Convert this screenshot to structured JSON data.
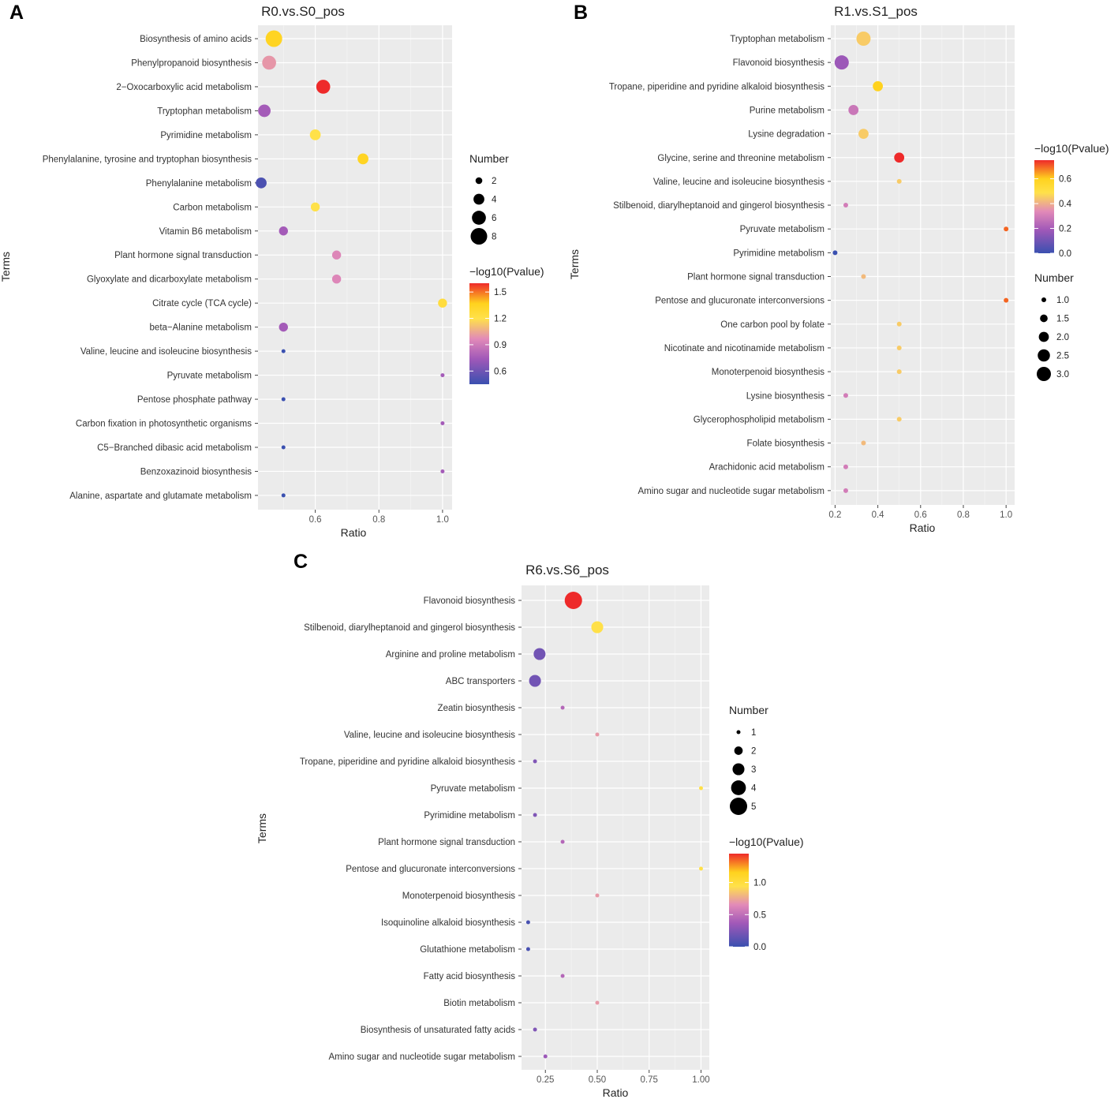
{
  "chart_data": [
    {
      "type": "scatter",
      "panel_label": "A",
      "title": "R0.vs.S0_pos",
      "xlabel": "Ratio",
      "ylabel": "Terms",
      "xlim": [
        0.42,
        1.03
      ],
      "xticks": [
        0.6,
        0.8,
        1.0
      ],
      "xtick_labels": [
        "0.6",
        "0.8",
        "1.0"
      ],
      "terms": [
        "Biosynthesis of amino acids",
        "Phenylpropanoid biosynthesis",
        "2−Oxocarboxylic acid metabolism",
        "Tryptophan metabolism",
        "Pyrimidine metabolism",
        "Phenylalanine, tyrosine and tryptophan biosynthesis",
        "Phenylalanine metabolism",
        "Carbon metabolism",
        "Vitamin B6 metabolism",
        "Plant hormone signal transduction",
        "Glyoxylate and dicarboxylate metabolism",
        "Citrate cycle (TCA cycle)",
        "beta−Alanine metabolism",
        "Valine, leucine and isoleucine biosynthesis",
        "Pyruvate metabolism",
        "Pentose phosphate pathway",
        "Carbon fixation in photosynthetic organisms",
        "C5−Branched dibasic acid metabolism",
        "Benzoxazinoid biosynthesis",
        "Alanine, aspartate and glutamate metabolism"
      ],
      "ratio": [
        0.47,
        0.455,
        0.625,
        0.44,
        0.6,
        0.75,
        0.43,
        0.6,
        0.5,
        0.667,
        0.667,
        1.0,
        0.5,
        0.5,
        1.0,
        0.5,
        1.0,
        0.5,
        1.0,
        0.5
      ],
      "number": [
        8,
        6,
        6,
        5,
        4,
        4,
        4,
        3,
        3,
        3,
        3,
        3,
        3,
        1,
        1,
        1,
        1,
        1,
        1,
        1
      ],
      "neglog10p": [
        1.35,
        1.0,
        1.6,
        0.75,
        1.2,
        1.35,
        0.5,
        1.2,
        0.75,
        0.95,
        0.95,
        1.25,
        0.75,
        0.45,
        0.75,
        0.45,
        0.75,
        0.45,
        0.75,
        0.45
      ],
      "size_legend": {
        "title": "Number",
        "values": [
          2,
          4,
          6,
          8
        ],
        "labels": [
          "2",
          "4",
          "6",
          "8"
        ],
        "min": 1,
        "max": 8
      },
      "color_legend": {
        "title": "−log10(Pvalue)",
        "min": 0.45,
        "max": 1.6,
        "ticks": [
          0.6,
          0.9,
          1.2,
          1.5
        ],
        "tick_labels": [
          "0.6",
          "0.9",
          "1.2",
          "1.5"
        ]
      },
      "legend_order": "size-first"
    },
    {
      "type": "scatter",
      "panel_label": "B",
      "title": "R1.vs.S1_pos",
      "xlabel": "Ratio",
      "ylabel": "Terms",
      "xlim": [
        0.18,
        1.04
      ],
      "xticks": [
        0.2,
        0.4,
        0.6,
        0.8,
        1.0
      ],
      "xtick_labels": [
        "0.2",
        "0.4",
        "0.6",
        "0.8",
        "1.0"
      ],
      "terms": [
        "Tryptophan metabolism",
        "Flavonoid biosynthesis",
        "Tropane, piperidine and pyridine alkaloid biosynthesis",
        "Purine metabolism",
        "Lysine degradation",
        "Glycine, serine and threonine metabolism",
        "Valine, leucine and isoleucine biosynthesis",
        "Stilbenoid, diarylheptanoid and gingerol biosynthesis",
        "Pyruvate metabolism",
        "Pyrimidine metabolism",
        "Plant hormone signal transduction",
        "Pentose and glucuronate interconversions",
        "One carbon pool by folate",
        "Nicotinate and nicotinamide metabolism",
        "Monoterpenoid biosynthesis",
        "Lysine biosynthesis",
        "Glycerophospholipid metabolism",
        "Folate biosynthesis",
        "Arachidonic acid metabolism",
        "Amino sugar and nucleotide sugar metabolism"
      ],
      "ratio": [
        0.333,
        0.231,
        0.4,
        0.286,
        0.333,
        0.5,
        0.5,
        0.25,
        1.0,
        0.2,
        0.333,
        1.0,
        0.5,
        0.5,
        0.5,
        0.25,
        0.5,
        0.333,
        0.25,
        0.25
      ],
      "number": [
        3,
        3,
        2,
        2,
        2,
        2,
        1,
        1,
        1,
        1,
        1,
        1,
        1,
        1,
        1,
        1,
        1,
        1,
        1,
        1
      ],
      "neglog10p": [
        0.45,
        0.18,
        0.6,
        0.28,
        0.45,
        0.75,
        0.45,
        0.3,
        0.7,
        0.0,
        0.42,
        0.7,
        0.45,
        0.45,
        0.45,
        0.3,
        0.45,
        0.42,
        0.3,
        0.3
      ],
      "size_legend": {
        "title": "Number",
        "values": [
          1.0,
          1.5,
          2.0,
          2.5,
          3.0
        ],
        "labels": [
          "1.0",
          "1.5",
          "2.0",
          "2.5",
          "3.0"
        ],
        "min": 1,
        "max": 3
      },
      "color_legend": {
        "title": "−log10(Pvalue)",
        "min": 0.0,
        "max": 0.75,
        "ticks": [
          0.0,
          0.2,
          0.4,
          0.6
        ],
        "tick_labels": [
          "0.0",
          "0.2",
          "0.4",
          "0.6"
        ]
      },
      "legend_order": "color-first"
    },
    {
      "type": "scatter",
      "panel_label": "C",
      "title": "R6.vs.S6_pos",
      "xlabel": "Ratio",
      "ylabel": "Terms",
      "xlim": [
        0.135,
        1.04
      ],
      "xticks": [
        0.25,
        0.5,
        0.75,
        1.0
      ],
      "xtick_labels": [
        "0.25",
        "0.50",
        "0.75",
        "1.00"
      ],
      "terms": [
        "Flavonoid biosynthesis",
        "Stilbenoid, diarylheptanoid and gingerol biosynthesis",
        "Arginine and proline metabolism",
        "ABC transporters",
        "Zeatin biosynthesis",
        "Valine, leucine and isoleucine biosynthesis",
        "Tropane, piperidine and pyridine alkaloid biosynthesis",
        "Pyruvate metabolism",
        "Pyrimidine metabolism",
        "Plant hormone signal transduction",
        "Pentose and glucuronate interconversions",
        "Monoterpenoid biosynthesis",
        "Isoquinoline alkaloid biosynthesis",
        "Glutathione metabolism",
        "Fatty acid biosynthesis",
        "Biotin metabolism",
        "Biosynthesis of unsaturated fatty acids",
        "Amino sugar and nucleotide sugar metabolism"
      ],
      "ratio": [
        0.385,
        0.5,
        0.222,
        0.2,
        0.333,
        0.5,
        0.2,
        1.0,
        0.2,
        0.333,
        1.0,
        0.5,
        0.167,
        0.167,
        0.333,
        0.5,
        0.2,
        0.25
      ],
      "number": [
        5,
        3,
        3,
        3,
        1,
        1,
        1,
        1,
        1,
        1,
        1,
        1,
        1,
        1,
        1,
        1,
        1,
        1
      ],
      "neglog10p": [
        1.45,
        0.95,
        0.2,
        0.2,
        0.45,
        0.7,
        0.25,
        0.95,
        0.25,
        0.45,
        0.95,
        0.7,
        0.05,
        0.05,
        0.45,
        0.7,
        0.25,
        0.35
      ],
      "size_legend": {
        "title": "Number",
        "values": [
          1,
          2,
          3,
          4,
          5
        ],
        "labels": [
          "1",
          "2",
          "3",
          "4",
          "5"
        ],
        "min": 1,
        "max": 5
      },
      "color_legend": {
        "title": "−log10(Pvalue)",
        "min": 0.0,
        "max": 1.45,
        "ticks": [
          0.0,
          0.5,
          1.0
        ],
        "tick_labels": [
          "0.0",
          "0.5",
          "1.0"
        ]
      },
      "legend_order": "size-first"
    }
  ]
}
